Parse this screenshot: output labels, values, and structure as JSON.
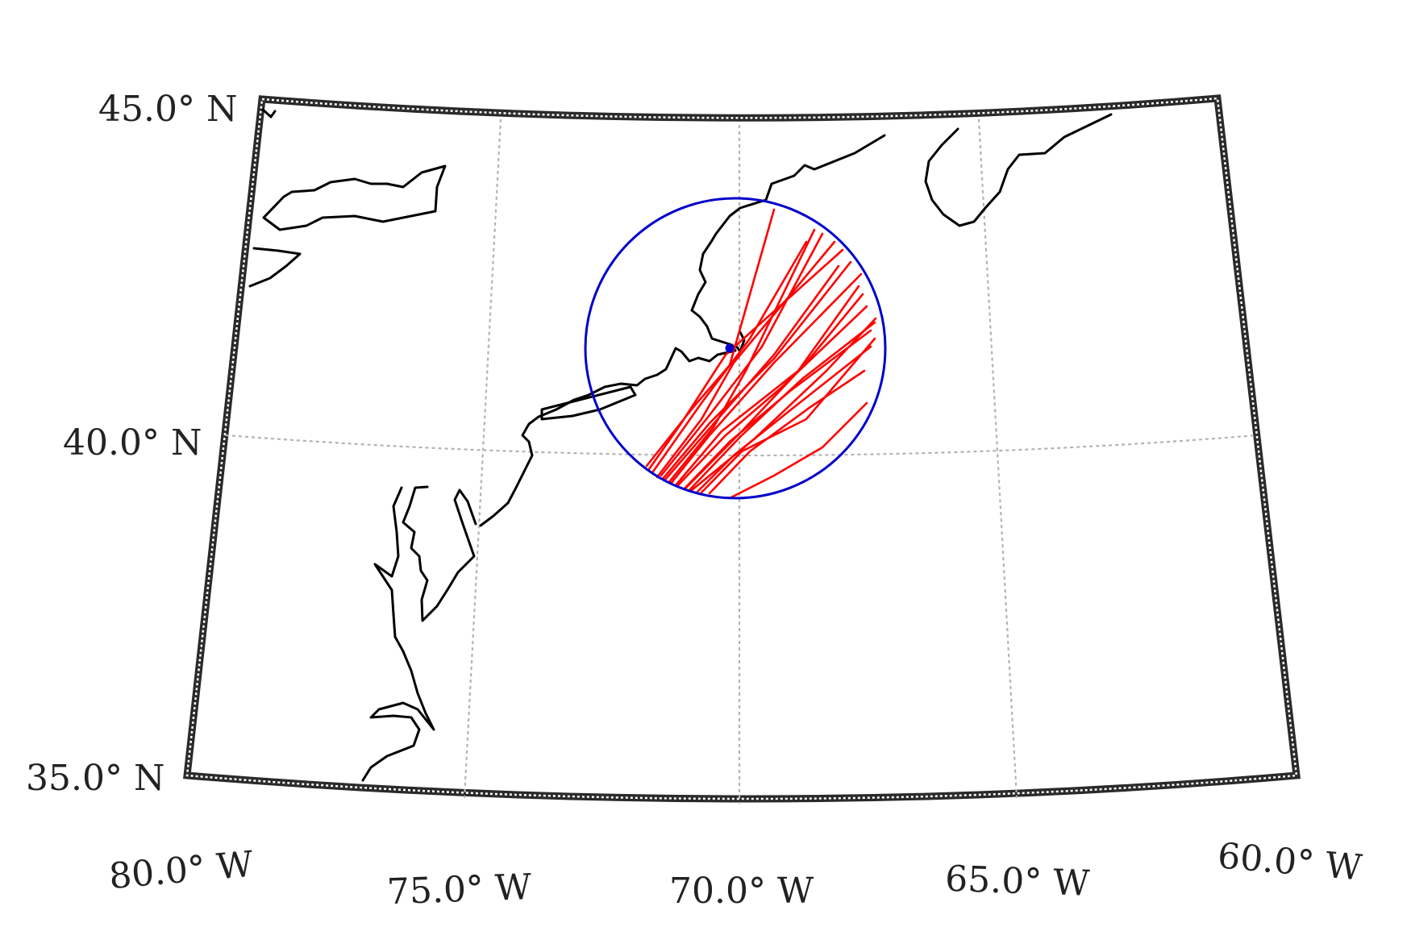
{
  "map": {
    "projection": "conic",
    "extent": {
      "lon_min": -80,
      "lon_max": -60,
      "lat_min": 35,
      "lat_max": 45
    },
    "graticule": {
      "meridians": [
        -80,
        -75,
        -70,
        -65,
        -60
      ],
      "parallels": [
        35,
        40,
        45
      ],
      "style": "dotted",
      "color": "#b3b3b3"
    },
    "latitude_labels": [
      "45.0° N",
      "40.0° N",
      "35.0° N"
    ],
    "longitude_labels": [
      "80.0° W",
      "75.0° W",
      "70.0° W",
      "65.0° W",
      "60.0° W"
    ],
    "search_circle": {
      "center": [
        -70.1,
        41.3
      ],
      "color": "#0000cc"
    },
    "center_marker": {
      "lon": -70.1,
      "lat": 41.3,
      "color": "#0000cc"
    },
    "tracks": {
      "color": "#ff0000",
      "count": 19
    },
    "coastline_color": "#000000",
    "frame_color": "#222222"
  }
}
